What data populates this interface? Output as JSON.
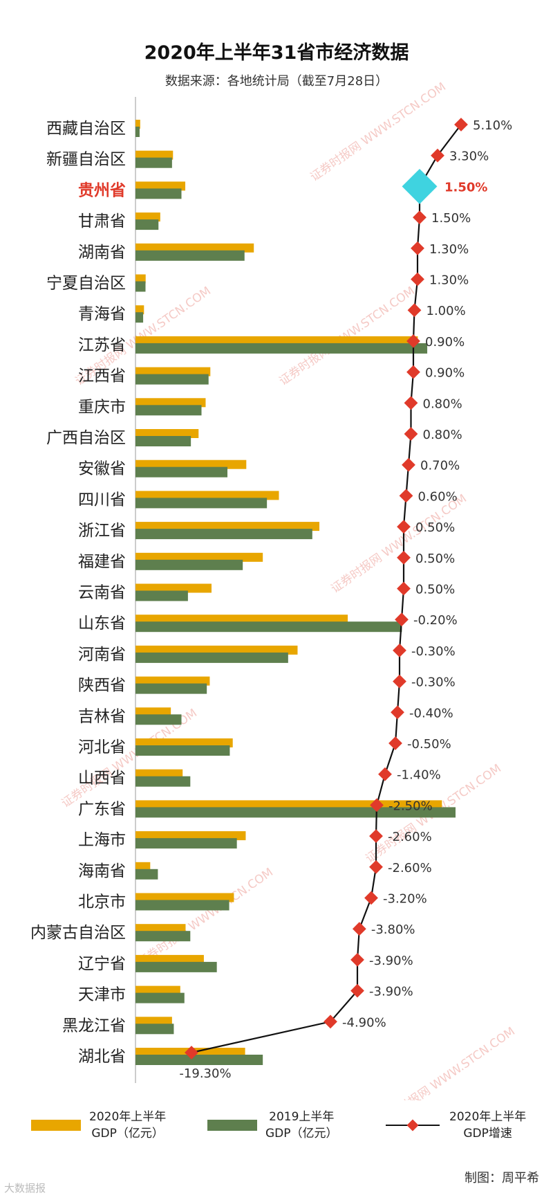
{
  "title": "2020年上半年31省市经济数据",
  "subtitle": "数据来源：各地统计局（截至7月28日）",
  "colors": {
    "bar_2020": "#E8A600",
    "bar_2019": "#5E7F4E",
    "marker": "#E03A2A",
    "line": "#111111",
    "highlight_marker": "#3FD3E0",
    "highlight_text": "#E03A2A",
    "watermark": "#E88A80"
  },
  "legend": {
    "bar_2020": "2020年上半年\nGDP（亿元）",
    "bar_2019": "2019上半年\nGDP（亿元）",
    "growth": "2020年上半年\nGDP增速"
  },
  "credit": "制图：周平希",
  "watermark": "证券时报网 WWW.STCN.COM",
  "footer_logo": "大数据报",
  "chart_data": {
    "type": "bar",
    "highlight": "贵州省",
    "categories": [
      "西藏自治区",
      "新疆自治区",
      "贵州省",
      "甘肃省",
      "湖南省",
      "宁夏自治区",
      "青海省",
      "江苏省",
      "江西省",
      "重庆市",
      "广西自治区",
      "安徽省",
      "四川省",
      "浙江省",
      "福建省",
      "云南省",
      "山东省",
      "河南省",
      "陕西省",
      "吉林省",
      "河北省",
      "山西省",
      "广东省",
      "上海市",
      "海南省",
      "北京市",
      "内蒙古自治区",
      "辽宁省",
      "天津市",
      "黑龙江省",
      "湖北省"
    ],
    "series": [
      {
        "name": "2020年上半年GDP（亿元）",
        "values": [
          802,
          6365,
          8447,
          4202,
          20080,
          1725,
          1442,
          47900,
          12700,
          11900,
          10702,
          18800,
          24334,
          31200,
          21600,
          12900,
          36013,
          27500,
          12600,
          6000,
          16500,
          8000,
          51995,
          18700,
          2500,
          16700,
          8500,
          11600,
          7600,
          6200,
          18600
        ]
      },
      {
        "name": "2019上半年GDP（亿元）",
        "values": [
          700,
          6200,
          7800,
          3900,
          18500,
          1700,
          1300,
          49500,
          12400,
          11200,
          9400,
          15600,
          22300,
          30000,
          18200,
          8900,
          45200,
          25900,
          12100,
          7800,
          16000,
          9300,
          54300,
          17200,
          3800,
          15900,
          9300,
          13800,
          8300,
          6500,
          21600
        ]
      },
      {
        "name": "2020年上半年GDP增速",
        "values": [
          5.1,
          3.3,
          1.5,
          1.5,
          1.3,
          1.3,
          1.0,
          0.9,
          0.9,
          0.8,
          0.8,
          0.7,
          0.6,
          0.5,
          0.5,
          0.5,
          -0.2,
          -0.3,
          -0.3,
          -0.4,
          -0.5,
          -1.4,
          -2.5,
          -2.6,
          -2.6,
          -3.2,
          -3.8,
          -3.9,
          -3.9,
          -4.9,
          -19.3
        ]
      }
    ],
    "growth_labels": [
      "5.10%",
      "3.30%",
      "1.50%",
      "1.50%",
      "1.30%",
      "1.30%",
      "1.00%",
      "0.90%",
      "0.90%",
      "0.80%",
      "0.80%",
      "0.70%",
      "0.60%",
      "0.50%",
      "0.50%",
      "0.50%",
      "-0.20%",
      "-0.30%",
      "-0.30%",
      "-0.40%",
      "-0.50%",
      "-1.40%",
      "-2.50%",
      "-2.60%",
      "-2.60%",
      "-3.20%",
      "-3.80%",
      "-3.90%",
      "-3.90%",
      "-4.90%",
      "-19.30%"
    ]
  }
}
